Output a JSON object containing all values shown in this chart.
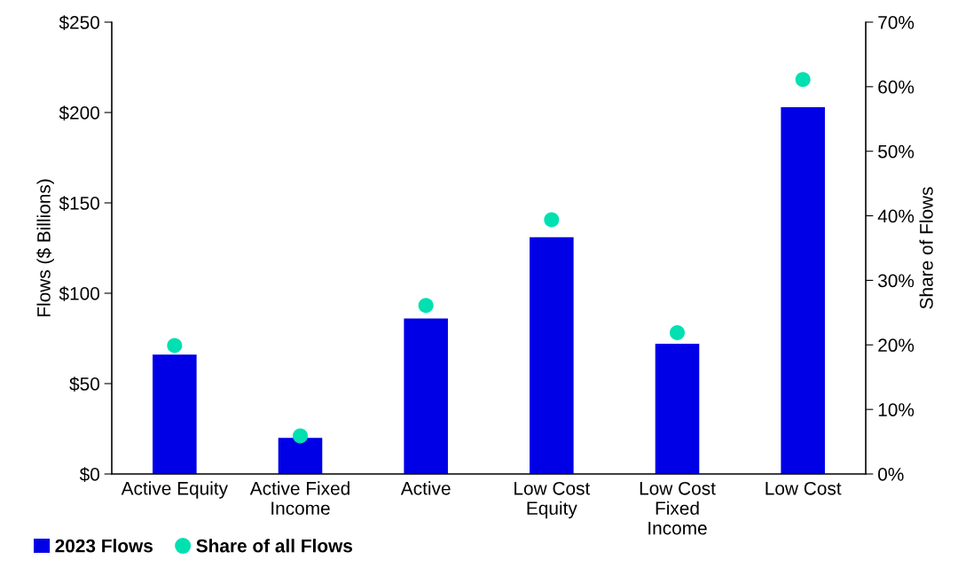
{
  "chart_data": {
    "type": "bar",
    "categories": [
      "Active Equity",
      "Active Fixed\nIncome",
      "Active",
      "Low Cost\nEquity",
      "Low Cost\nFixed\nIncome",
      "Low Cost"
    ],
    "ylabel": "Flows ($ Billions)",
    "y2label": "Share of Flows",
    "ylim": [
      0,
      250
    ],
    "yticks": [
      {
        "value": 0,
        "label": "$0"
      },
      {
        "value": 50,
        "label": "$50"
      },
      {
        "value": 100,
        "label": "$100"
      },
      {
        "value": 150,
        "label": "$150"
      },
      {
        "value": 200,
        "label": "$200"
      },
      {
        "value": 250,
        "label": "$250"
      }
    ],
    "y2lim": [
      0,
      70
    ],
    "y2ticks": [
      {
        "value": 0,
        "label": "0%"
      },
      {
        "value": 10,
        "label": "10%"
      },
      {
        "value": 20,
        "label": "20%"
      },
      {
        "value": 30,
        "label": "30%"
      },
      {
        "value": 40,
        "label": "40%"
      },
      {
        "value": 50,
        "label": "50%"
      },
      {
        "value": 60,
        "label": "60%"
      },
      {
        "value": 70,
        "label": "70%"
      }
    ],
    "series": [
      {
        "name": "2023 Flows",
        "color": "#0000e6",
        "values": [
          66,
          20,
          86,
          131,
          72,
          203
        ]
      },
      {
        "name": "Share of all Flows",
        "type": "scatter",
        "axis": "y2",
        "color": "#00e0b0",
        "marker": "circle",
        "values": [
          19.9,
          5.9,
          26.1,
          39.4,
          21.9,
          61.1
        ]
      }
    ],
    "grid": false,
    "legend": "bottom left"
  }
}
